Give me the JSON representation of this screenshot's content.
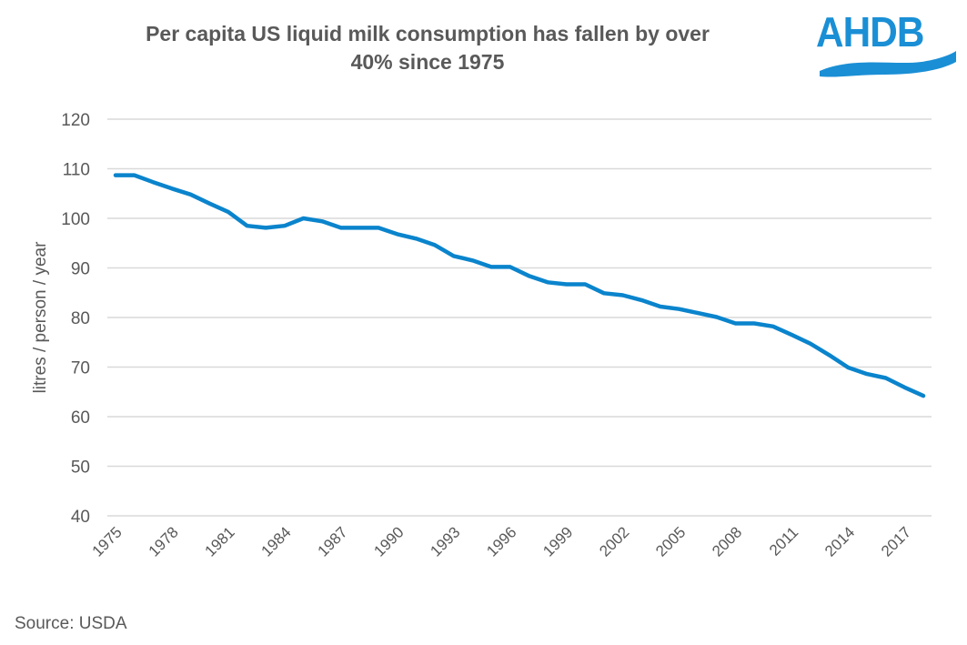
{
  "header": {
    "title_line1": "Per capita US liquid milk consumption has fallen by over",
    "title_line2": "40% since 1975"
  },
  "logo": {
    "text": "AHDB",
    "color": "#1a8fd5"
  },
  "footer": {
    "source": "Source: USDA"
  },
  "colors": {
    "line": "#0a84cc",
    "grid": "#d9d9d9",
    "text": "#595959"
  },
  "chart_data": {
    "type": "line",
    "title": "Per capita US liquid milk consumption has fallen by over 40% since 1975",
    "xlabel": "",
    "ylabel": "litres / person / year",
    "ylim": [
      40,
      120
    ],
    "yticks": [
      40,
      50,
      60,
      70,
      80,
      90,
      100,
      110,
      120
    ],
    "xtick_labels": [
      "1975",
      "1978",
      "1981",
      "1984",
      "1987",
      "1990",
      "1993",
      "1996",
      "1999",
      "2002",
      "2005",
      "2008",
      "2011",
      "2014",
      "2017"
    ],
    "grid": true,
    "legend": "none",
    "x": [
      1975,
      1976,
      1977,
      1978,
      1979,
      1980,
      1981,
      1982,
      1983,
      1984,
      1985,
      1986,
      1987,
      1988,
      1989,
      1990,
      1991,
      1992,
      1993,
      1994,
      1995,
      1996,
      1997,
      1998,
      1999,
      2000,
      2001,
      2002,
      2003,
      2004,
      2005,
      2006,
      2007,
      2008,
      2009,
      2010,
      2011,
      2012,
      2013,
      2014,
      2015,
      2016,
      2017,
      2018
    ],
    "series": [
      {
        "name": "Per capita liquid milk consumption",
        "values": [
          108.7,
          108.7,
          107.3,
          106.0,
          104.8,
          103.0,
          101.3,
          98.5,
          98.1,
          98.5,
          100.0,
          99.4,
          98.1,
          98.1,
          98.1,
          96.8,
          95.9,
          94.6,
          92.4,
          91.5,
          90.2,
          90.2,
          88.4,
          87.1,
          86.7,
          86.7,
          84.9,
          84.5,
          83.5,
          82.2,
          81.7,
          80.9,
          80.1,
          78.8,
          78.8,
          78.2,
          76.5,
          74.7,
          72.4,
          69.9,
          68.6,
          67.8,
          65.9,
          64.2
        ]
      }
    ]
  }
}
